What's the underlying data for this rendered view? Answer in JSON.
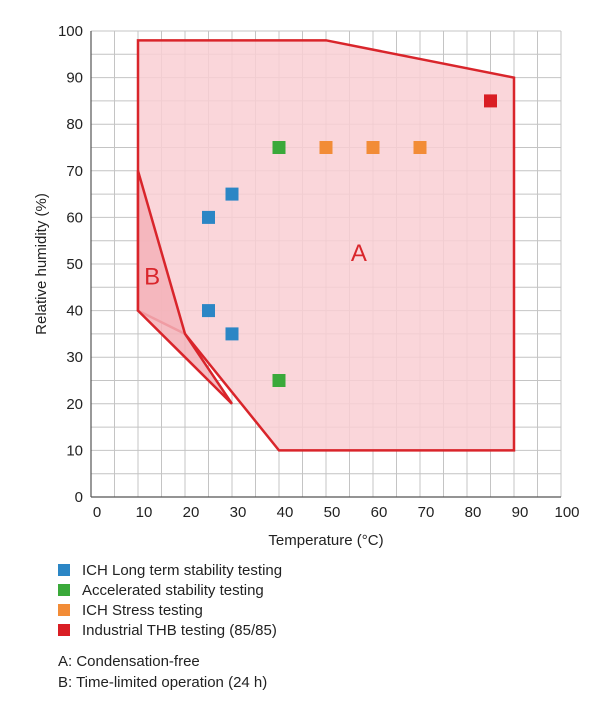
{
  "chart_data": {
    "type": "scatter",
    "xlabel": "Temperature (°C)",
    "ylabel": "Relative humidity (%)",
    "xlim": [
      0,
      100
    ],
    "ylim": [
      0,
      100
    ],
    "x_ticks": [
      "0",
      "10",
      "20",
      "30",
      "40",
      "50",
      "60",
      "70",
      "80",
      "90",
      "100"
    ],
    "y_ticks": [
      "0",
      "10",
      "20",
      "30",
      "40",
      "50",
      "60",
      "70",
      "80",
      "90",
      "100"
    ],
    "grid": true,
    "regions": [
      {
        "label": "A",
        "outline_color": "#d9252b",
        "fill_color": "#f9cfd3",
        "points": [
          [
            10,
            98
          ],
          [
            50,
            98
          ],
          [
            90,
            90
          ],
          [
            90,
            10
          ],
          [
            40,
            10
          ],
          [
            20,
            35
          ],
          [
            10,
            40
          ]
        ]
      },
      {
        "label": "B",
        "outline_color": "#d9252b",
        "fill_color": "#f3b2b8",
        "points": [
          [
            10,
            70
          ],
          [
            10,
            40
          ],
          [
            20,
            30
          ],
          [
            30,
            20
          ],
          [
            20,
            35
          ]
        ]
      }
    ],
    "series": [
      {
        "name": "ICH Long term stability testing",
        "color": "#2b86c5",
        "x": [
          25,
          30,
          25,
          30
        ],
        "y": [
          60,
          65,
          40,
          35
        ]
      },
      {
        "name": "Accelerated stability testing",
        "color": "#3aa93a",
        "x": [
          40,
          40
        ],
        "y": [
          75,
          25
        ]
      },
      {
        "name": "ICH Stress testing",
        "color": "#f28c37",
        "x": [
          50,
          60,
          70
        ],
        "y": [
          75,
          75,
          75
        ]
      },
      {
        "name": "Industrial THB testing (85/85)",
        "color": "#d91e24",
        "x": [
          85
        ],
        "y": [
          85
        ]
      }
    ],
    "notes": [
      "A: Condensation-free",
      "B: Time-limited operation (24 h)"
    ]
  }
}
